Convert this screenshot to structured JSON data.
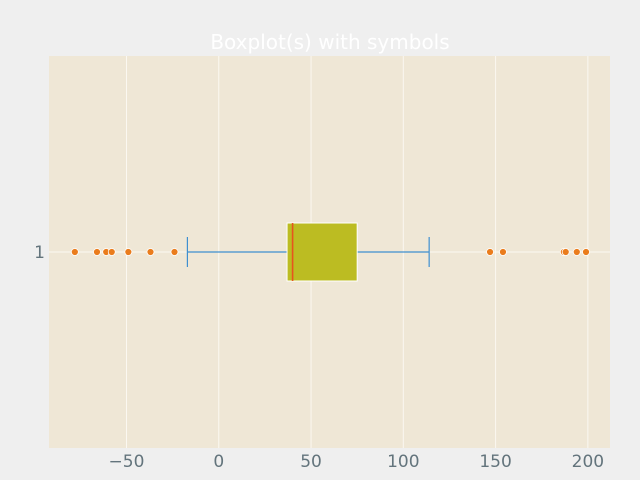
{
  "chart_data": {
    "type": "boxplot",
    "orientation": "horizontal",
    "title": "Boxplot(s) with symbols",
    "xlabel": "",
    "ylabel": "",
    "xlim": [
      -92,
      212
    ],
    "x_ticks": [
      -50,
      0,
      50,
      100,
      150,
      200
    ],
    "x_tick_labels": [
      "−50",
      "0",
      "50",
      "100",
      "150",
      "200"
    ],
    "categories": [
      "1"
    ],
    "grid": true,
    "boxes": [
      {
        "name": "1",
        "whisker_low": -17,
        "q1": 37,
        "median": 40,
        "q3": 75,
        "whisker_high": 114,
        "outliers": [
          -78,
          -66,
          -61,
          -58,
          -49,
          -37,
          -24,
          147,
          154,
          187,
          188,
          194,
          199
        ]
      }
    ],
    "colors": {
      "background": "#efefef",
      "plot_area": "#efe7d6",
      "grid": "#fbf8f1",
      "box_fill": "#bcbc22",
      "median": "#e7541e",
      "whisker": "#3f8fd0",
      "outlier": "#ea7c1c",
      "title": "#ffffff",
      "tick_text": "#63747c"
    }
  }
}
